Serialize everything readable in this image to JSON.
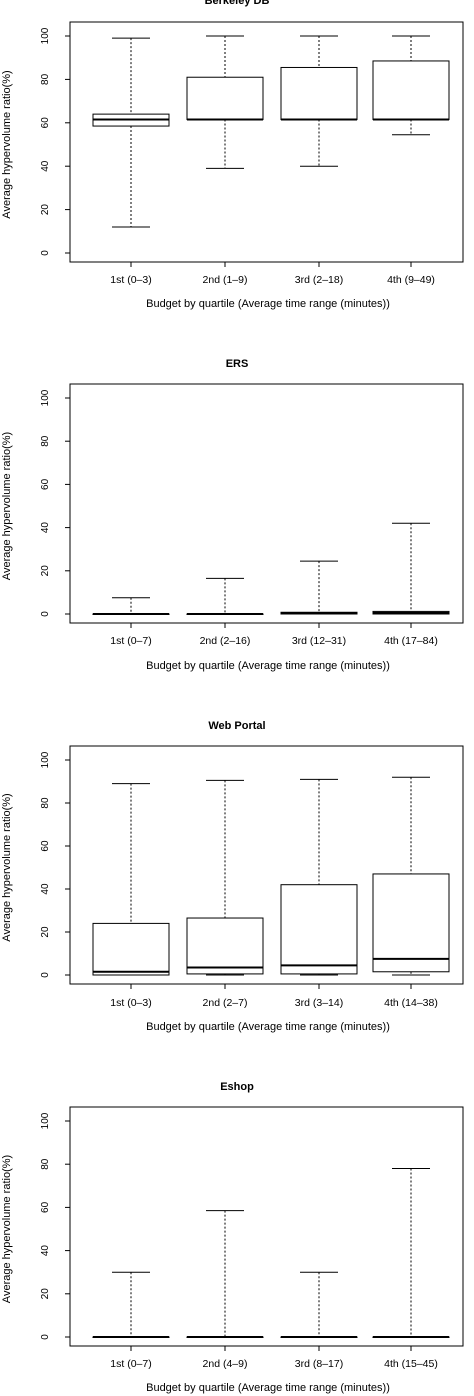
{
  "chart_data": [
    {
      "type": "box",
      "title": "Berkeley DB",
      "ylabel": "Average hypervolume ratio(%)",
      "xlabel": "Budget by quartile (Average time range (minutes))",
      "ylim": [
        0,
        100
      ],
      "yticks": [
        0,
        20,
        40,
        60,
        80,
        100
      ],
      "categories": [
        "1st (0–3)",
        "2nd (1–9)",
        "3rd (2–18)",
        "4th (9–49)"
      ],
      "boxes": [
        {
          "min": 12,
          "q1": 58.5,
          "median": 61.5,
          "q3": 64,
          "max": 99
        },
        {
          "min": 39,
          "q1": 61.5,
          "median": 61.5,
          "q3": 81,
          "max": 100
        },
        {
          "min": 40,
          "q1": 61.5,
          "median": 61.5,
          "q3": 85.5,
          "max": 100
        },
        {
          "min": 54.5,
          "q1": 61.5,
          "median": 61.5,
          "q3": 88.5,
          "max": 100
        }
      ]
    },
    {
      "type": "box",
      "title": "ERS",
      "ylabel": "Average hypervolume ratio(%)",
      "xlabel": "Budget by quartile (Average time range (minutes))",
      "ylim": [
        0,
        100
      ],
      "yticks": [
        0,
        20,
        40,
        60,
        80,
        100
      ],
      "categories": [
        "1st (0–7)",
        "2nd (2–16)",
        "3rd (12–31)",
        "4th (17–84)"
      ],
      "boxes": [
        {
          "min": 0,
          "q1": 0,
          "median": 0,
          "q3": 0,
          "max": 7.5
        },
        {
          "min": 0,
          "q1": 0,
          "median": 0,
          "q3": 0,
          "max": 16.5
        },
        {
          "min": 0,
          "q1": 0,
          "median": 0.3,
          "q3": 0.8,
          "max": 24.5
        },
        {
          "min": 0,
          "q1": 0,
          "median": 0.5,
          "q3": 1.2,
          "max": 42
        }
      ]
    },
    {
      "type": "box",
      "title": "Web Portal",
      "ylabel": "Average hypervolume ratio(%)",
      "xlabel": "Budget by quartile (Average time range (minutes))",
      "ylim": [
        0,
        100
      ],
      "yticks": [
        0,
        20,
        40,
        60,
        80,
        100
      ],
      "categories": [
        "1st (0–3)",
        "2nd (2–7)",
        "3rd (3–14)",
        "4th (14–38)"
      ],
      "boxes": [
        {
          "min": 0,
          "q1": 0,
          "median": 1.5,
          "q3": 24,
          "max": 89
        },
        {
          "min": 0,
          "q1": 0.5,
          "median": 3.5,
          "q3": 26.5,
          "max": 90.5
        },
        {
          "min": 0,
          "q1": 0.5,
          "median": 4.5,
          "q3": 42,
          "max": 91
        },
        {
          "min": 0,
          "q1": 1.5,
          "median": 7.5,
          "q3": 47,
          "max": 92
        }
      ]
    },
    {
      "type": "box",
      "title": "Eshop",
      "ylabel": "Average hypervolume ratio(%)",
      "xlabel": "Budget by quartile (Average time range (minutes))",
      "ylim": [
        0,
        100
      ],
      "yticks": [
        0,
        20,
        40,
        60,
        80,
        100
      ],
      "categories": [
        "1st (0–7)",
        "2nd (4–9)",
        "3rd (8–17)",
        "4th (15–45)"
      ],
      "boxes": [
        {
          "min": 0,
          "q1": 0,
          "median": 0,
          "q3": 0,
          "max": 30
        },
        {
          "min": 0,
          "q1": 0,
          "median": 0,
          "q3": 0,
          "max": 58.5
        },
        {
          "min": 0,
          "q1": 0,
          "median": 0,
          "q3": 0,
          "max": 30
        },
        {
          "min": 0,
          "q1": 0,
          "median": 0,
          "q3": 0,
          "max": 78
        }
      ]
    }
  ]
}
